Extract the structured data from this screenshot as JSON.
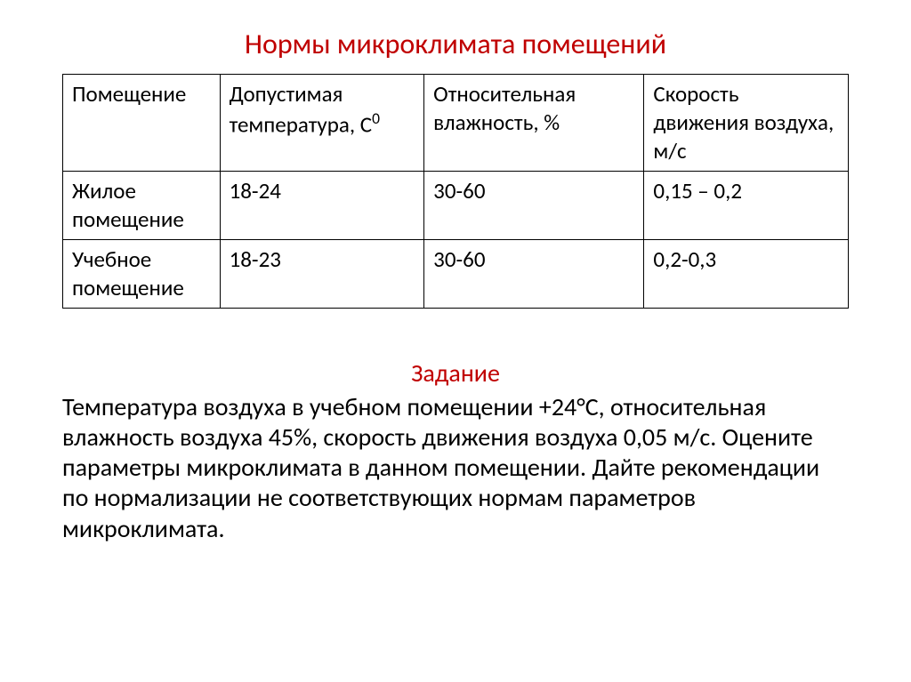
{
  "title": "Нормы микроклимата помещений",
  "table": {
    "headers": {
      "c1": "Помещение",
      "c2_pre": "Допустимая температура, С",
      "c2_sup": "0",
      "c3": "Относительная влажность, %",
      "c4": "Скорость движения воздуха, м/с"
    },
    "rows": [
      {
        "c1": "Жилое помещение",
        "c2": "18-24",
        "c3": "30-60",
        "c4": "0,15 – 0,2"
      },
      {
        "c1": "Учебное помещение",
        "c2": "18-23",
        "c3": "30-60",
        "c4": "0,2-0,3"
      }
    ]
  },
  "task": {
    "heading": "Задание",
    "body": "Температура воздуха в учебном помещении +24°С, относительная влажность воздуха 45%, скорость движения воздуха 0,05 м/с. Оцените параметры микроклимата в данном помещении. Дайте рекомендации по нормализации не соответствующих нормам параметров микроклимата."
  },
  "style": {
    "title_color": "#c00000",
    "text_color": "#000000",
    "border_color": "#000000",
    "background_color": "#ffffff",
    "title_fontsize": 32,
    "cell_fontsize": 25,
    "task_fontsize": 28
  }
}
